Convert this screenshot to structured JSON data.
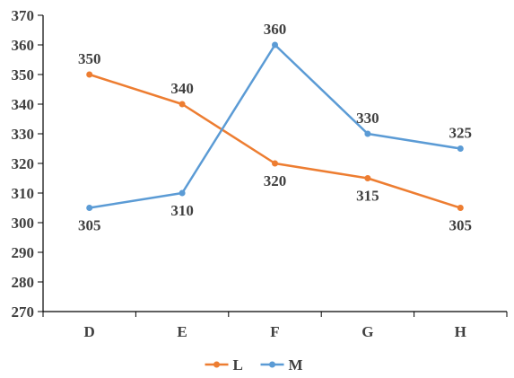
{
  "chart_data": {
    "type": "line",
    "categories": [
      "D",
      "E",
      "F",
      "G",
      "H"
    ],
    "series": [
      {
        "name": "L",
        "color": "#ED7D31",
        "values": [
          350,
          340,
          320,
          315,
          305
        ]
      },
      {
        "name": "M",
        "color": "#5B9BD5",
        "values": [
          305,
          310,
          360,
          330,
          325
        ]
      }
    ],
    "ylim": [
      270,
      370
    ],
    "yticks": [
      270,
      280,
      290,
      300,
      310,
      320,
      330,
      340,
      350,
      360,
      370
    ],
    "title": "",
    "xlabel": "",
    "ylabel": "",
    "grid": false,
    "legend": "bottom-center",
    "data_labels": true
  }
}
